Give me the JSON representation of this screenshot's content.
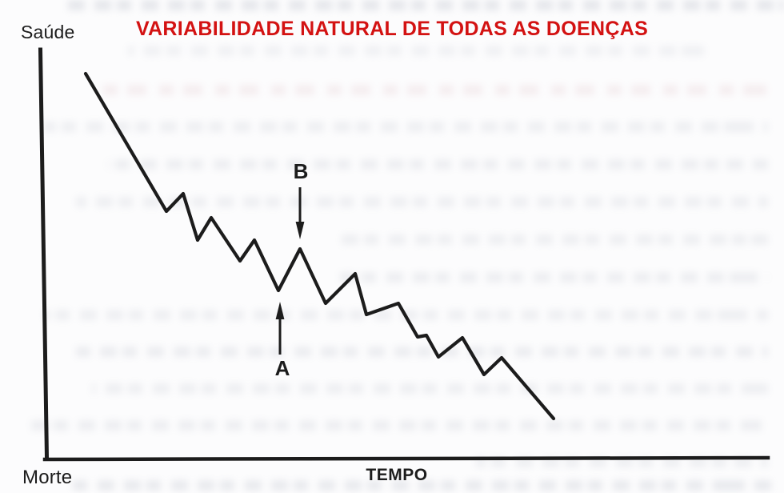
{
  "page": {
    "background": "#fcfcfd",
    "ink_color": "#1c1c1c",
    "title_color": "#d31212"
  },
  "chart": {
    "title": "VARIABILIDADE NATURAL DE TODAS AS DOENÇAS",
    "y_axis_top_label": "Saúde",
    "y_axis_bottom_label": "Morte",
    "x_axis_label": "TEMPO",
    "annotations": [
      {
        "label": "A",
        "arrow_direction": "up",
        "points_to": "local-minimum-of-curve"
      },
      {
        "label": "B",
        "arrow_direction": "down",
        "points_to": "local-maximum-of-curve"
      }
    ]
  },
  "chart_data": {
    "type": "line",
    "title": "VARIABILIDADE NATURAL DE TODAS AS DOENÇAS",
    "xlabel": "TEMPO",
    "ylabel": "Saúde (topo) — Morte (base)",
    "xlim": [
      0,
      100
    ],
    "ylim": [
      0,
      100
    ],
    "grid": false,
    "legend": false,
    "axes_quantitative": false,
    "series": [
      {
        "name": "health-over-time",
        "x": [
          6.3,
          17.4,
          19.7,
          21.6,
          23.5,
          27.5,
          29.5,
          32.7,
          35.7,
          39.2,
          43.3,
          44.8,
          49.2,
          51.9,
          53.1,
          54.7,
          58.0,
          61.0,
          63.4,
          70.5
        ],
        "y": [
          94.1,
          60.5,
          64.8,
          53.4,
          58.9,
          48.3,
          53.4,
          41.1,
          51.3,
          37.8,
          45.2,
          35.2,
          38.0,
          29.7,
          30.1,
          24.9,
          29.5,
          20.5,
          24.7,
          9.8
        ]
      }
    ],
    "annotations": [
      {
        "label": "A",
        "x": 32.7,
        "y": 41.1,
        "arrow_direction": "up",
        "points_to": "local minimum"
      },
      {
        "label": "B",
        "x": 35.7,
        "y": 51.3,
        "arrow_direction": "down",
        "points_to": "local maximum"
      }
    ]
  },
  "render": {
    "line_width": 4.2,
    "axes": [
      [
        50.5,
        62,
        58.5,
        572,
        5
      ],
      [
        56,
        574,
        960,
        572,
        4.5
      ]
    ],
    "polyline": [
      [
        107,
        92
      ],
      [
        208,
        264
      ],
      [
        229,
        242
      ],
      [
        247,
        300
      ],
      [
        264,
        272
      ],
      [
        300,
        326
      ],
      [
        318,
        300
      ],
      [
        348,
        363
      ],
      [
        375,
        311
      ],
      [
        407,
        379
      ],
      [
        444,
        342
      ],
      [
        458,
        393
      ],
      [
        498,
        379
      ],
      [
        522,
        421
      ],
      [
        533,
        419
      ],
      [
        548,
        446
      ],
      [
        578,
        422
      ],
      [
        605,
        468
      ],
      [
        627,
        447
      ],
      [
        692,
        523
      ]
    ],
    "arrows": [
      {
        "name": "annotation-a-up-arrow",
        "shaft": [
          350,
          443,
          350,
          397
        ],
        "head": [
          [
            350,
            377
          ],
          [
            344.6,
            399
          ],
          [
            355.4,
            399
          ]
        ]
      },
      {
        "name": "annotation-b-down-arrow",
        "shaft": [
          375,
          234,
          375,
          280
        ],
        "head": [
          [
            375,
            299
          ],
          [
            369.6,
            277
          ],
          [
            380.4,
            277
          ]
        ]
      }
    ],
    "scan_artifacts": [
      [
        0,
        85,
        895,
        0.2,
        "g"
      ],
      [
        57,
        160,
        720,
        0.1,
        "g"
      ],
      [
        106,
        115,
        845,
        0.13,
        "p"
      ],
      [
        152,
        55,
        905,
        0.12,
        "g"
      ],
      [
        199,
        135,
        825,
        0.13,
        "g"
      ],
      [
        246,
        95,
        865,
        0.12,
        "g"
      ],
      [
        293,
        415,
        545,
        0.12,
        "g"
      ],
      [
        340,
        425,
        535,
        0.13,
        "g"
      ],
      [
        387,
        55,
        905,
        0.12,
        "g"
      ],
      [
        433,
        95,
        865,
        0.14,
        "g"
      ],
      [
        479,
        115,
        845,
        0.12,
        "g"
      ],
      [
        525,
        35,
        925,
        0.13,
        "g"
      ],
      [
        571,
        595,
        365,
        0.12,
        "g"
      ],
      [
        600,
        85,
        880,
        0.17,
        "g"
      ]
    ]
  }
}
